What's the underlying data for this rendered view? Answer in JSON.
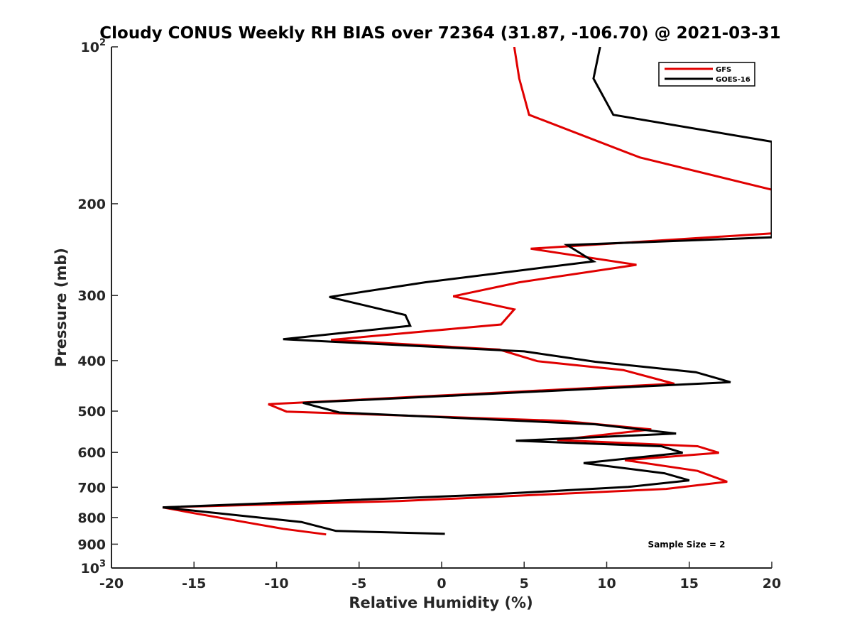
{
  "chart_data": {
    "type": "line",
    "title": "Cloudy CONUS Weekly RH BIAS over 72364 (31.87, -106.70) @ 2021-03-31",
    "xlabel": "Relative Humidity (%)",
    "ylabel": "Pressure (mb)",
    "xlim": [
      -20,
      20
    ],
    "ylim": [
      100,
      1000
    ],
    "y_scale": "log",
    "y_reversed": true,
    "x_ticks": [
      "-20",
      "-15",
      "-10",
      "-5",
      "0",
      "5",
      "10",
      "15",
      "20"
    ],
    "y_ticks": [
      {
        "value": 100,
        "base": "10",
        "exp": "2"
      },
      {
        "value": 200,
        "label": "200"
      },
      {
        "value": 300,
        "label": "300"
      },
      {
        "value": 400,
        "label": "400"
      },
      {
        "value": 500,
        "label": "500"
      },
      {
        "value": 600,
        "label": "600"
      },
      {
        "value": 700,
        "label": "700"
      },
      {
        "value": 800,
        "label": "800"
      },
      {
        "value": 900,
        "label": "900"
      },
      {
        "value": 1000,
        "base": "10",
        "exp": "3"
      }
    ],
    "grid": false,
    "legend_position": "top-right",
    "annotation": "Sample Size = 2",
    "series": [
      {
        "name": "GFS",
        "color": "#e00000",
        "points": [
          [
            4.4,
            100
          ],
          [
            4.7,
            115
          ],
          [
            5.3,
            135
          ],
          [
            12.0,
            163
          ],
          [
            20.0,
            188
          ],
          [
            20.0,
            228
          ],
          [
            5.4,
            244
          ],
          [
            11.8,
            262
          ],
          [
            4.7,
            283
          ],
          [
            0.7,
            301
          ],
          [
            4.4,
            319
          ],
          [
            3.6,
            341
          ],
          [
            -6.7,
            365
          ],
          [
            3.5,
            381
          ],
          [
            5.8,
            401
          ],
          [
            11.0,
            417
          ],
          [
            14.1,
            443
          ],
          [
            -10.5,
            485
          ],
          [
            -9.4,
            501
          ],
          [
            7.3,
            522
          ],
          [
            12.7,
            542
          ],
          [
            7.0,
            568
          ],
          [
            15.5,
            584
          ],
          [
            16.8,
            601
          ],
          [
            11.1,
            621
          ],
          [
            15.5,
            651
          ],
          [
            17.3,
            683
          ],
          [
            13.6,
            705
          ],
          [
            2.0,
            733
          ],
          [
            -2.6,
            744
          ],
          [
            -16.9,
            765
          ],
          [
            -15.0,
            785
          ],
          [
            -9.6,
            841
          ],
          [
            -7.0,
            862
          ]
        ]
      },
      {
        "name": "GOES-16",
        "color": "#000000",
        "points": [
          [
            9.6,
            100
          ],
          [
            9.2,
            115
          ],
          [
            10.4,
            135
          ],
          [
            20.0,
            152
          ],
          [
            20.0,
            232
          ],
          [
            7.6,
            240
          ],
          [
            9.2,
            258
          ],
          [
            -1.0,
            283
          ],
          [
            -6.8,
            302
          ],
          [
            -2.2,
            327
          ],
          [
            -1.9,
            343
          ],
          [
            -9.6,
            364
          ],
          [
            5.0,
            384
          ],
          [
            9.3,
            402
          ],
          [
            15.4,
            421
          ],
          [
            17.5,
            440
          ],
          [
            -8.4,
            482
          ],
          [
            -6.2,
            503
          ],
          [
            9.3,
            530
          ],
          [
            14.2,
            552
          ],
          [
            4.5,
            570
          ],
          [
            13.3,
            584
          ],
          [
            14.6,
            601
          ],
          [
            8.6,
            629
          ],
          [
            13.5,
            658
          ],
          [
            15.0,
            679
          ],
          [
            11.3,
            699
          ],
          [
            2.0,
            725
          ],
          [
            -16.9,
            765
          ],
          [
            -8.5,
            816
          ],
          [
            -6.4,
            849
          ],
          [
            0.2,
            860
          ]
        ]
      }
    ]
  }
}
